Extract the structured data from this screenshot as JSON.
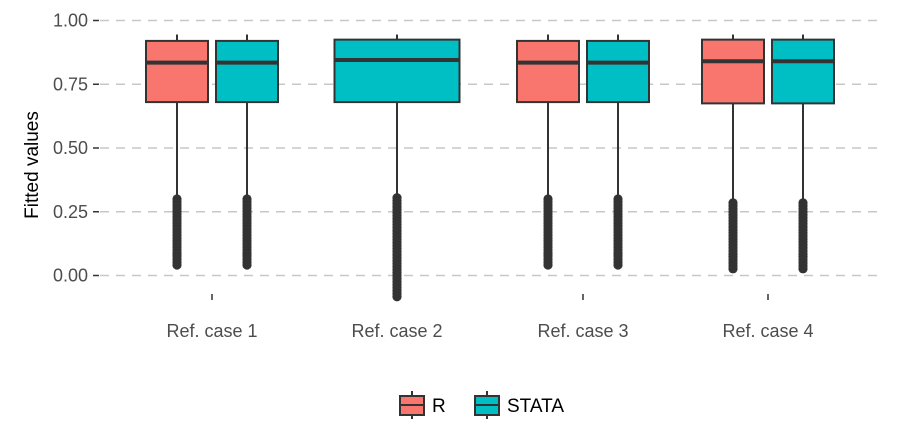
{
  "chart_data": {
    "type": "boxplot",
    "ylabel": "Fitted values",
    "xlabel": "",
    "ylim": [
      -0.12,
      1.06
    ],
    "yticks": [
      0.0,
      0.25,
      0.5,
      0.75,
      1.0
    ],
    "ytick_labels": [
      "0.00",
      "0.25",
      "0.50",
      "0.75",
      "1.00"
    ],
    "grid": "horizontal dashed",
    "legend_position": "bottom",
    "categories": [
      "Ref. case 1",
      "Ref. case 2",
      "Ref. case 3",
      "Ref. case 4"
    ],
    "series": [
      {
        "name": "R",
        "color": "#F8766D",
        "boxes": [
          {
            "category": "Ref. case 1",
            "min": 0.3,
            "q1": 0.68,
            "median": 0.835,
            "q3": 0.92,
            "max": 0.945,
            "outliers": [
              0.04,
              0.3
            ]
          },
          null,
          {
            "category": "Ref. case 3",
            "min": 0.3,
            "q1": 0.68,
            "median": 0.835,
            "q3": 0.92,
            "max": 0.945,
            "outliers": [
              0.04,
              0.3
            ]
          },
          {
            "category": "Ref. case 4",
            "min": 0.285,
            "q1": 0.675,
            "median": 0.84,
            "q3": 0.925,
            "max": 0.945,
            "outliers": [
              0.02,
              0.285
            ]
          }
        ]
      },
      {
        "name": "STATA",
        "color": "#00BFC4",
        "boxes": [
          {
            "category": "Ref. case 1",
            "min": 0.3,
            "q1": 0.68,
            "median": 0.835,
            "q3": 0.92,
            "max": 0.945,
            "outliers": [
              0.04,
              0.3
            ]
          },
          {
            "category": "Ref. case 2",
            "min": 0.305,
            "q1": 0.68,
            "median": 0.845,
            "q3": 0.925,
            "max": 0.945,
            "outliers": [
              -0.09,
              0.305
            ]
          },
          {
            "category": "Ref. case 3",
            "min": 0.3,
            "q1": 0.68,
            "median": 0.835,
            "q3": 0.92,
            "max": 0.945,
            "outliers": [
              0.04,
              0.3
            ]
          },
          {
            "category": "Ref. case 4",
            "min": 0.285,
            "q1": 0.675,
            "median": 0.84,
            "q3": 0.925,
            "max": 0.945,
            "outliers": [
              0.02,
              0.285
            ]
          }
        ]
      }
    ]
  }
}
